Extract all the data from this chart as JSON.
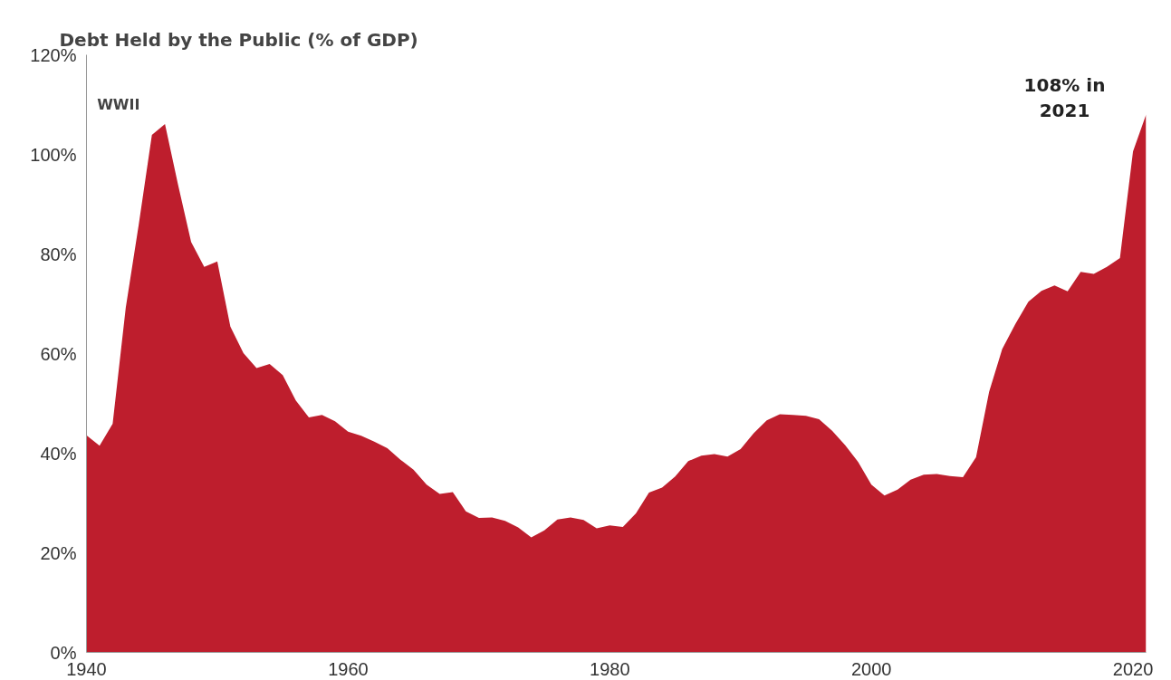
{
  "chart_data": {
    "type": "area",
    "title": "Debt Held by the Public (% of GDP)",
    "x": [
      1940,
      1941,
      1942,
      1943,
      1944,
      1945,
      1946,
      1947,
      1948,
      1949,
      1950,
      1951,
      1952,
      1953,
      1954,
      1955,
      1956,
      1957,
      1958,
      1959,
      1960,
      1961,
      1962,
      1963,
      1964,
      1965,
      1966,
      1967,
      1968,
      1969,
      1970,
      1971,
      1972,
      1973,
      1974,
      1975,
      1976,
      1977,
      1978,
      1979,
      1980,
      1981,
      1982,
      1983,
      1984,
      1985,
      1986,
      1987,
      1988,
      1989,
      1990,
      1991,
      1992,
      1993,
      1994,
      1995,
      1996,
      1997,
      1998,
      1999,
      2000,
      2001,
      2002,
      2003,
      2004,
      2005,
      2006,
      2007,
      2008,
      2009,
      2010,
      2011,
      2012,
      2013,
      2014,
      2015,
      2016,
      2017,
      2018,
      2019,
      2020,
      2021
    ],
    "series": [
      {
        "color": "#be1e2d",
        "values": [
          43.6,
          41.5,
          45.9,
          69.2,
          86.0,
          103.9,
          106.1,
          93.9,
          82.4,
          77.4,
          78.5,
          65.4,
          60.1,
          57.1,
          57.9,
          55.7,
          50.6,
          47.2,
          47.7,
          46.4,
          44.3,
          43.5,
          42.3,
          41.0,
          38.7,
          36.7,
          33.7,
          31.8,
          32.2,
          28.3,
          27.0,
          27.1,
          26.4,
          25.1,
          23.1,
          24.5,
          26.7,
          27.1,
          26.6,
          24.9,
          25.5,
          25.2,
          27.9,
          32.1,
          33.1,
          35.3,
          38.4,
          39.5,
          39.8,
          39.3,
          40.8,
          44.0,
          46.6,
          47.8,
          47.7,
          47.5,
          46.8,
          44.5,
          41.6,
          38.2,
          33.7,
          31.5,
          32.7,
          34.7,
          35.7,
          35.8,
          35.4,
          35.2,
          39.2,
          52.3,
          60.9,
          65.9,
          70.4,
          72.6,
          73.7,
          72.5,
          76.4,
          76.0,
          77.4,
          79.2,
          100.6,
          108
        ]
      }
    ],
    "xlim": [
      1940,
      2021
    ],
    "ylim": [
      0,
      120
    ],
    "xticks": [
      1940,
      1960,
      1980,
      2000,
      2020
    ],
    "yticks": [
      {
        "value": 0,
        "label": "0%"
      },
      {
        "value": 20,
        "label": "20%"
      },
      {
        "value": 40,
        "label": "40%"
      },
      {
        "value": 60,
        "label": "60%"
      },
      {
        "value": 80,
        "label": "80%"
      },
      {
        "value": 100,
        "label": "100%"
      },
      {
        "value": 120,
        "label": "120%"
      }
    ],
    "annotations": [
      {
        "text": "WWII",
        "x": 1946,
        "y": 106.1
      },
      {
        "text": "108% in\n2021",
        "x": 2021,
        "y": 108
      }
    ],
    "grid": false
  }
}
